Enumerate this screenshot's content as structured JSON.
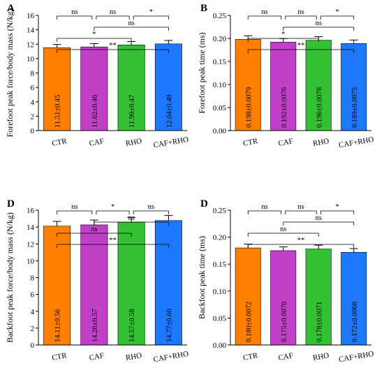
{
  "colors": {
    "CTR": "#ff8000",
    "CAF": "#c040c8",
    "RHO": "#33c033",
    "CAF+RHO": "#1e78ff",
    "axis": "#000000"
  },
  "chart_data": [
    {
      "type": "bar",
      "panel_letter": "A",
      "ylabel": "Forefoot peak force/body mass (N/kg)",
      "categories": [
        "CTR",
        "CAF",
        "RHO",
        "CAF+RHO"
      ],
      "values": [
        11.51,
        11.62,
        11.9,
        12.04
      ],
      "errors": [
        0.45,
        0.46,
        0.47,
        0.48
      ],
      "bar_labels": [
        "11.51±0.45",
        "11.62±0.46",
        "11.90±0.47",
        "12.04±0.48"
      ],
      "ylim": [
        0,
        16
      ],
      "yticks": [
        "0",
        "2",
        "4",
        "6",
        "8",
        "10",
        "12",
        "14",
        "16"
      ],
      "significance": [
        {
          "from": "CTR",
          "to": "CAF+RHO",
          "label": "**"
        },
        {
          "from": "CTR",
          "to": "RHO",
          "label": "*"
        },
        {
          "from": "CAF",
          "to": "CAF+RHO",
          "label": "ns"
        },
        {
          "from": "CTR",
          "to": "CAF",
          "label": "ns"
        },
        {
          "from": "CAF",
          "to": "RHO",
          "label": "ns"
        },
        {
          "from": "RHO",
          "to": "CAF+RHO",
          "label": "*"
        }
      ]
    },
    {
      "type": "bar",
      "panel_letter": "B",
      "ylabel": "Forefoot peak time (ms)",
      "categories": [
        "CTR",
        "CAF",
        "RHO",
        "CAF+RHO"
      ],
      "values": [
        0.198,
        0.192,
        0.196,
        0.189
      ],
      "errors": [
        0.0079,
        0.0076,
        0.0078,
        0.0075
      ],
      "bar_labels": [
        "0.198±0.0079",
        "0.192±0.0076",
        "0.196±0.0078",
        "0.189±0.0075"
      ],
      "ylim": [
        0,
        0.25
      ],
      "yticks": [
        "0.00",
        "0.05",
        "0.10",
        "0.15",
        "0.20",
        "0.25"
      ],
      "significance": [
        {
          "from": "CTR",
          "to": "CAF+RHO",
          "label": "**"
        },
        {
          "from": "CTR",
          "to": "RHO",
          "label": "*"
        },
        {
          "from": "CAF",
          "to": "CAF+RHO",
          "label": "ns"
        },
        {
          "from": "CTR",
          "to": "CAF",
          "label": "ns"
        },
        {
          "from": "CAF",
          "to": "RHO",
          "label": "ns"
        },
        {
          "from": "RHO",
          "to": "CAF+RHO",
          "label": "*"
        }
      ]
    },
    {
      "type": "bar",
      "panel_letter": "D",
      "ylabel": "Backfoot peak force/body mass (N/kg)",
      "categories": [
        "CTR",
        "CAF",
        "RHO",
        "CAF+RHO"
      ],
      "values": [
        14.11,
        14.26,
        14.57,
        14.77
      ],
      "errors": [
        0.56,
        0.57,
        0.58,
        0.6
      ],
      "bar_labels": [
        "14.11±0.56",
        "14.26±0.57",
        "14.57±0.58",
        "14.77±0.60"
      ],
      "ylim": [
        0,
        16
      ],
      "yticks": [
        "0",
        "2",
        "4",
        "6",
        "8",
        "10",
        "12",
        "14",
        "16"
      ],
      "significance": [
        {
          "from": "CTR",
          "to": "CAF+RHO",
          "label": "**"
        },
        {
          "from": "CTR",
          "to": "RHO",
          "label": "ns"
        },
        {
          "from": "CAF",
          "to": "CAF+RHO",
          "label": "ns"
        },
        {
          "from": "CTR",
          "to": "CAF",
          "label": "ns"
        },
        {
          "from": "CAF",
          "to": "RHO",
          "label": "*"
        },
        {
          "from": "RHO",
          "to": "CAF+RHO",
          "label": "ns"
        }
      ]
    },
    {
      "type": "bar",
      "panel_letter": "D",
      "ylabel": "Backfoot peak time (ms)",
      "categories": [
        "CTR",
        "CAF",
        "RHO",
        "CAF+RHO"
      ],
      "values": [
        0.18,
        0.175,
        0.178,
        0.172
      ],
      "errors": [
        0.0072,
        0.007,
        0.0071,
        0.0068
      ],
      "bar_labels": [
        "0.180±0.0072",
        "0.175±0.0070",
        "0.178±0.0071",
        "0.172±0.0068"
      ],
      "ylim": [
        0,
        0.25
      ],
      "yticks": [
        "0.00",
        "0.05",
        "0.10",
        "0.15",
        "0.20",
        "0.25"
      ],
      "significance": [
        {
          "from": "CTR",
          "to": "CAF+RHO",
          "label": "**"
        },
        {
          "from": "CTR",
          "to": "RHO",
          "label": "ns"
        },
        {
          "from": "CAF",
          "to": "CAF+RHO",
          "label": "ns"
        },
        {
          "from": "CTR",
          "to": "CAF",
          "label": "ns"
        },
        {
          "from": "CAF",
          "to": "RHO",
          "label": "ns"
        },
        {
          "from": "RHO",
          "to": "CAF+RHO",
          "label": "*"
        }
      ]
    }
  ]
}
